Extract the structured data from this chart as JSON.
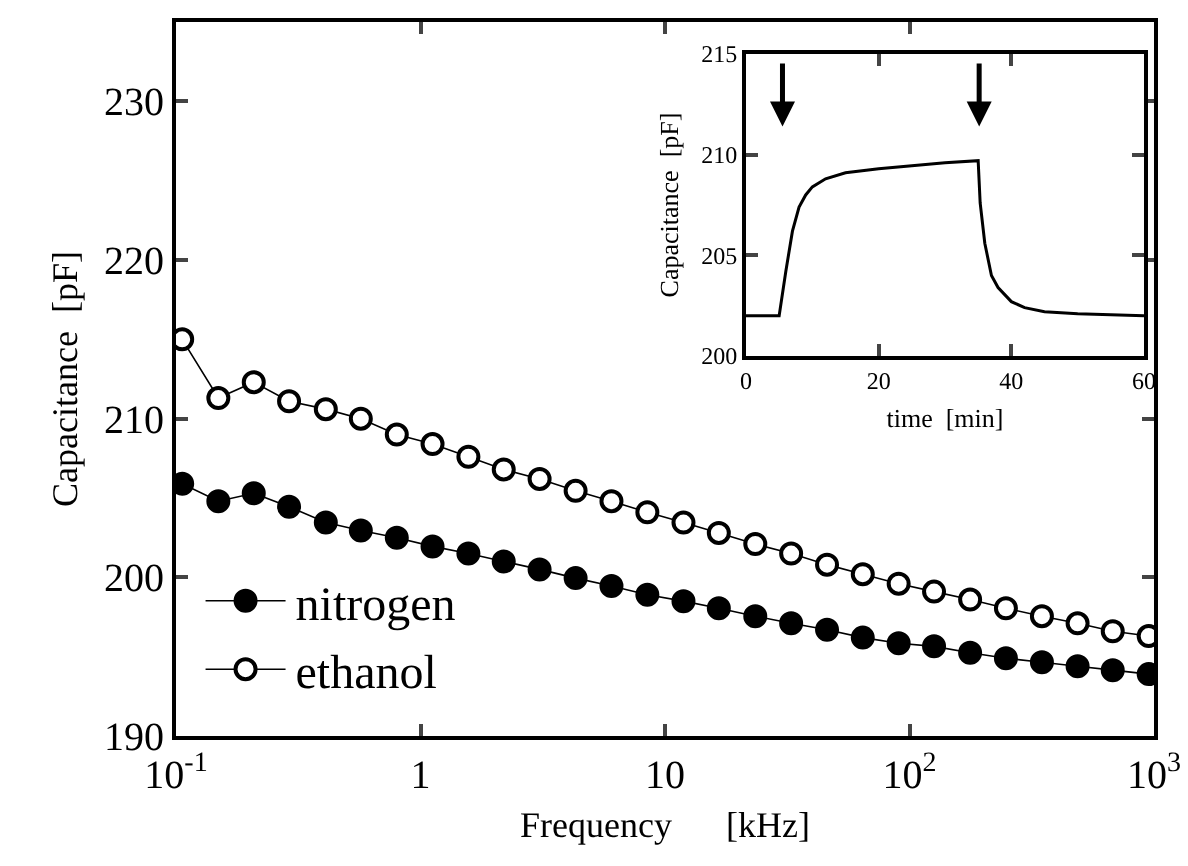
{
  "chart_data": [
    {
      "type": "line",
      "xlabel": "Frequency      [kHz]",
      "ylabel": "Capacitance  [pF]",
      "log": "x",
      "marker": "circle",
      "legend": "bottom left",
      "grid": false,
      "x": [
        0.106,
        0.149,
        0.208,
        0.29,
        0.41,
        0.57,
        0.8,
        1.12,
        1.57,
        2.19,
        3.07,
        4.31,
        6.04,
        8.47,
        11.9,
        16.6,
        23.4,
        32.8,
        46,
        64.4,
        90.3,
        126,
        177,
        248,
        348,
        487,
        678,
        951
      ],
      "xlim": [
        0.1,
        1000
      ],
      "xticks": [
        {
          "value": 0.1,
          "label": "10$^{-1}$"
        },
        1,
        10,
        {
          "value": 100,
          "label": "10$^{2}$"
        },
        {
          "value": 1000,
          "label": "10$^{3}$"
        }
      ],
      "ylim": [
        190,
        235
      ],
      "yticks": [
        190,
        200,
        210,
        220,
        230
      ],
      "series": [
        {
          "name": "nitrogen",
          "color": "#000000",
          "values": [
            205.9,
            204.8,
            205.3,
            204.45,
            203.45,
            202.95,
            202.5,
            201.95,
            201.5,
            201.0,
            200.5,
            199.95,
            199.45,
            198.9,
            198.5,
            198.05,
            197.55,
            197.1,
            196.7,
            196.2,
            195.85,
            195.65,
            195.25,
            194.9,
            194.65,
            194.4,
            194.15,
            193.9
          ]
        },
        {
          "name": "ethanol",
          "color": "#ffffff",
          "values": [
            215.0,
            211.3,
            212.3,
            211.1,
            210.6,
            210.0,
            209.0,
            208.4,
            207.6,
            206.8,
            206.2,
            205.45,
            204.8,
            204.1,
            203.45,
            202.8,
            202.1,
            201.5,
            200.8,
            200.2,
            199.6,
            199.1,
            198.6,
            198.05,
            197.55,
            197.1,
            196.6,
            196.3
          ]
        }
      ]
    },
    {
      "type": "line",
      "xlabel": "time  [min]",
      "ylabel": "Capacitance  [pF]",
      "marker": "none",
      "legend": false,
      "grid": false,
      "x": [
        0,
        5,
        6,
        7,
        8,
        9,
        10,
        12,
        15,
        20,
        25,
        30,
        35,
        35.3,
        36,
        37,
        38,
        40,
        42,
        45,
        50,
        60
      ],
      "xlim": [
        0,
        60
      ],
      "xticks": [
        0,
        20,
        40,
        60
      ],
      "ylim": [
        200,
        215
      ],
      "yticks": [
        200,
        205,
        210,
        215
      ],
      "series": [
        {
          "color": "#000000",
          "values": [
            202.0,
            202.0,
            204.2,
            206.2,
            207.4,
            208.0,
            208.4,
            208.8,
            209.1,
            209.3,
            209.45,
            209.6,
            209.7,
            207.6,
            205.6,
            204.0,
            203.4,
            202.7,
            202.4,
            202.2,
            202.1,
            202.0
          ]
        }
      ]
    }
  ]
}
